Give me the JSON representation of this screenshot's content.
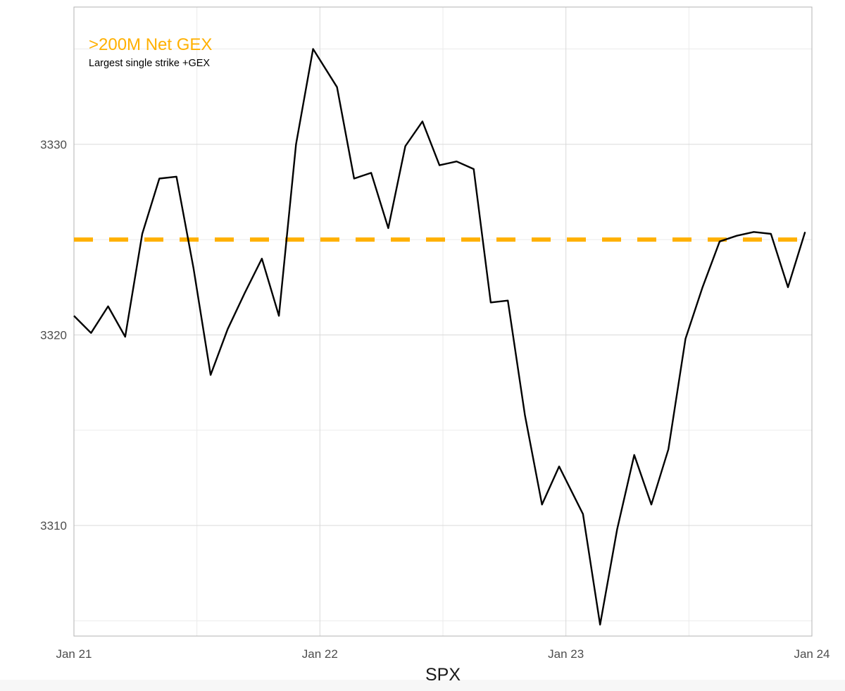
{
  "chart_data": {
    "type": "line",
    "title": "",
    "xlabel": "SPX",
    "ylabel": "",
    "x_ticks": [
      "Jan 21",
      "Jan 22",
      "Jan 23",
      "Jan 24"
    ],
    "y_ticks": [
      3310,
      3320,
      3330
    ],
    "xlim": [
      "2020-01-21",
      "2020-01-24"
    ],
    "ylim": [
      3304.2,
      3337.2
    ],
    "grid": true,
    "annotation": {
      "title": ">200M Net GEX",
      "subtitle": "Largest single strike +GEX"
    },
    "reference_line": {
      "y": 3325,
      "style": "dashed"
    },
    "series": [
      {
        "x": [
          "2020-01-21 00:00",
          "2020-01-21 01:40",
          "2020-01-21 03:20",
          "2020-01-21 05:00",
          "2020-01-21 06:40",
          "2020-01-21 08:20",
          "2020-01-21 10:00",
          "2020-01-21 11:40",
          "2020-01-21 13:20",
          "2020-01-21 15:00",
          "2020-01-21 16:40",
          "2020-01-21 18:20",
          "2020-01-21 20:00",
          "2020-01-21 21:40",
          "2020-01-21 23:20",
          "2020-01-22 01:40",
          "2020-01-22 03:20",
          "2020-01-22 05:00",
          "2020-01-22 06:40",
          "2020-01-22 08:20",
          "2020-01-22 10:00",
          "2020-01-22 11:40",
          "2020-01-22 13:20",
          "2020-01-22 15:00",
          "2020-01-22 16:40",
          "2020-01-22 18:20",
          "2020-01-22 20:00",
          "2020-01-22 21:40",
          "2020-01-22 23:20",
          "2020-01-23 01:40",
          "2020-01-23 03:20",
          "2020-01-23 05:00",
          "2020-01-23 06:40",
          "2020-01-23 08:20",
          "2020-01-23 10:00",
          "2020-01-23 11:40",
          "2020-01-23 13:20",
          "2020-01-23 15:00",
          "2020-01-23 16:40",
          "2020-01-23 18:20",
          "2020-01-23 20:00",
          "2020-01-23 21:40",
          "2020-01-23 23:20"
        ],
        "values": [
          3321.0,
          3320.1,
          3321.5,
          3319.9,
          3325.3,
          3328.2,
          3328.3,
          3323.5,
          3317.9,
          3320.3,
          3322.2,
          3324.0,
          3321.0,
          3330.0,
          3335.0,
          3333.0,
          3328.2,
          3328.5,
          3325.6,
          3329.9,
          3331.2,
          3328.9,
          3329.1,
          3328.7,
          3321.7,
          3321.8,
          3315.8,
          3311.1,
          3313.1,
          3310.6,
          3304.8,
          3309.8,
          3313.7,
          3311.1,
          3314.0,
          3319.8,
          3322.5,
          3324.9,
          3325.2,
          3325.4,
          3325.3,
          3322.5,
          3325.4
        ]
      }
    ],
    "colors": {
      "line": "#000000",
      "reference": "#FFB000",
      "annotation": "#FFB000",
      "grid": "#d9d9d9",
      "panel_border": "#b3b3b3"
    }
  }
}
